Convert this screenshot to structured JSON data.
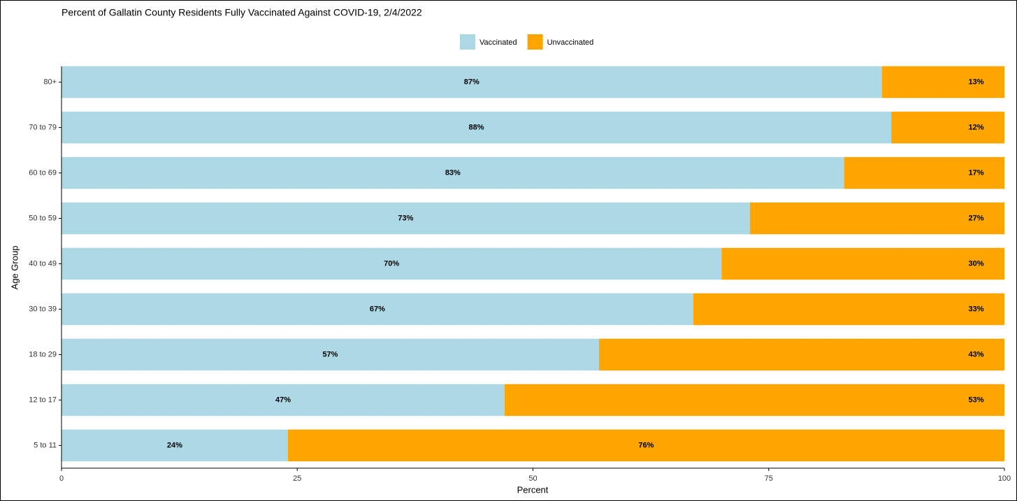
{
  "chart_data": {
    "type": "stacked-barh",
    "title": "Percent of Gallatin County Residents Fully Vaccinated Against COVID-19, 2/4/2022",
    "xlabel": "Percent",
    "ylabel": "Age Group",
    "categories": [
      "80+",
      "70 to 79",
      "60 to 69",
      "50 to 59",
      "40 to 49",
      "30 to 39",
      "18 to 29",
      "12 to 17",
      "5 to 11"
    ],
    "series": [
      {
        "name": "Vaccinated",
        "color": "#add8e6",
        "values": [
          87,
          88,
          83,
          73,
          70,
          67,
          57,
          47,
          24
        ],
        "value_labels": [
          "87%",
          "88%",
          "83%",
          "73%",
          "70%",
          "67%",
          "57%",
          "47%",
          "24%"
        ]
      },
      {
        "name": "Unvaccinated",
        "color": "#ffa500",
        "values": [
          13,
          12,
          17,
          27,
          30,
          33,
          43,
          53,
          76
        ],
        "value_labels": [
          "13%",
          "12%",
          "17%",
          "27%",
          "30%",
          "33%",
          "43%",
          "53%",
          "76%"
        ]
      }
    ],
    "xlim": [
      0,
      100
    ],
    "xticks": [
      0,
      25,
      50,
      75,
      100
    ],
    "grid": false,
    "legend": "top"
  }
}
